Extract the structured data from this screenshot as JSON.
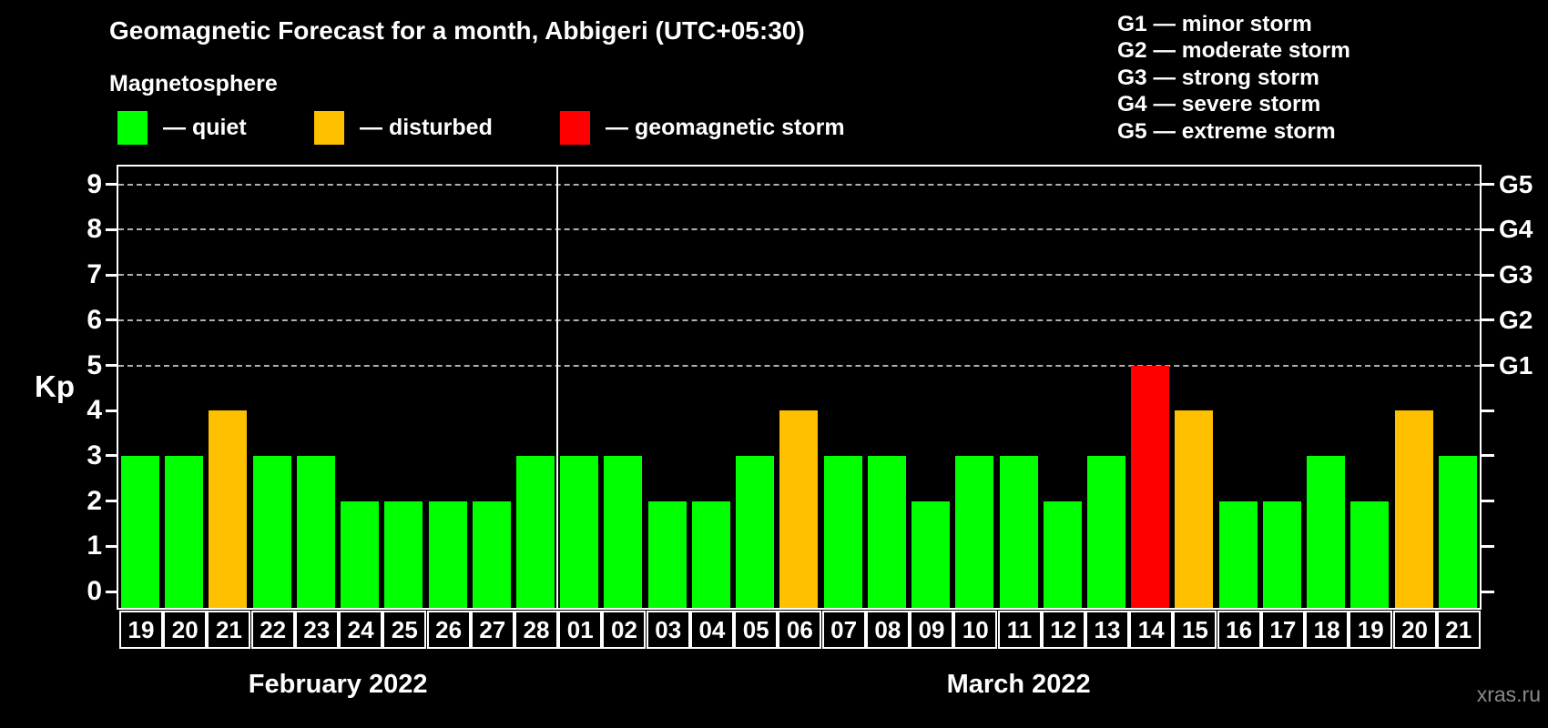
{
  "title": "Geomagnetic Forecast for a month, Abbigeri (UTC+05:30)",
  "subtitle": "Magnetosphere",
  "watermark": "xras.ru",
  "legend": {
    "items": [
      {
        "status": "quiet",
        "color": "#00ff00",
        "label": "— quiet"
      },
      {
        "status": "disturbed",
        "color": "#ffc000",
        "label": "— disturbed"
      },
      {
        "status": "storm",
        "color": "#ff0000",
        "label": "— geomagnetic storm"
      }
    ]
  },
  "g_scale_legend": {
    "lines": [
      "G1 — minor storm",
      "G2 — moderate storm",
      "G3 — strong storm",
      "G4 — severe storm",
      "G5 — extreme storm"
    ]
  },
  "chart_data": {
    "type": "bar",
    "title": "Geomagnetic Forecast for a month, Abbigeri (UTC+05:30)",
    "xlabel": "",
    "ylabel": "Kp",
    "ylim": [
      0,
      9.4
    ],
    "y_ticks": [
      0,
      1,
      2,
      3,
      4,
      5,
      6,
      7,
      8,
      9
    ],
    "gridlines": [
      5,
      6,
      7,
      8,
      9
    ],
    "grid": "dashed horizontal at G-storm levels only",
    "legend_position": "top-left",
    "right_axis": [
      {
        "value": 5,
        "label": "G1"
      },
      {
        "value": 6,
        "label": "G2"
      },
      {
        "value": 7,
        "label": "G3"
      },
      {
        "value": 8,
        "label": "G4"
      },
      {
        "value": 9,
        "label": "G5"
      }
    ],
    "status_colors": {
      "quiet": "#00ff00",
      "disturbed": "#ffc000",
      "storm": "#ff0000"
    },
    "groups": [
      {
        "month": "February 2022",
        "days": [
          {
            "day": "19",
            "kp": 3,
            "status": "quiet"
          },
          {
            "day": "20",
            "kp": 3,
            "status": "quiet"
          },
          {
            "day": "21",
            "kp": 4,
            "status": "disturbed"
          },
          {
            "day": "22",
            "kp": 3,
            "status": "quiet"
          },
          {
            "day": "23",
            "kp": 3,
            "status": "quiet"
          },
          {
            "day": "24",
            "kp": 2,
            "status": "quiet"
          },
          {
            "day": "25",
            "kp": 2,
            "status": "quiet"
          },
          {
            "day": "26",
            "kp": 2,
            "status": "quiet"
          },
          {
            "day": "27",
            "kp": 2,
            "status": "quiet"
          },
          {
            "day": "28",
            "kp": 3,
            "status": "quiet"
          }
        ]
      },
      {
        "month": "March 2022",
        "days": [
          {
            "day": "01",
            "kp": 3,
            "status": "quiet"
          },
          {
            "day": "02",
            "kp": 3,
            "status": "quiet"
          },
          {
            "day": "03",
            "kp": 2,
            "status": "quiet"
          },
          {
            "day": "04",
            "kp": 2,
            "status": "quiet"
          },
          {
            "day": "05",
            "kp": 3,
            "status": "quiet"
          },
          {
            "day": "06",
            "kp": 4,
            "status": "disturbed"
          },
          {
            "day": "07",
            "kp": 3,
            "status": "quiet"
          },
          {
            "day": "08",
            "kp": 3,
            "status": "quiet"
          },
          {
            "day": "09",
            "kp": 2,
            "status": "quiet"
          },
          {
            "day": "10",
            "kp": 3,
            "status": "quiet"
          },
          {
            "day": "11",
            "kp": 3,
            "status": "quiet"
          },
          {
            "day": "12",
            "kp": 2,
            "status": "quiet"
          },
          {
            "day": "13",
            "kp": 3,
            "status": "quiet"
          },
          {
            "day": "14",
            "kp": 5,
            "status": "storm"
          },
          {
            "day": "15",
            "kp": 4,
            "status": "disturbed"
          },
          {
            "day": "16",
            "kp": 2,
            "status": "quiet"
          },
          {
            "day": "17",
            "kp": 2,
            "status": "quiet"
          },
          {
            "day": "18",
            "kp": 3,
            "status": "quiet"
          },
          {
            "day": "19",
            "kp": 2,
            "status": "quiet"
          },
          {
            "day": "20",
            "kp": 4,
            "status": "disturbed"
          },
          {
            "day": "21",
            "kp": 3,
            "status": "quiet"
          }
        ]
      }
    ]
  }
}
